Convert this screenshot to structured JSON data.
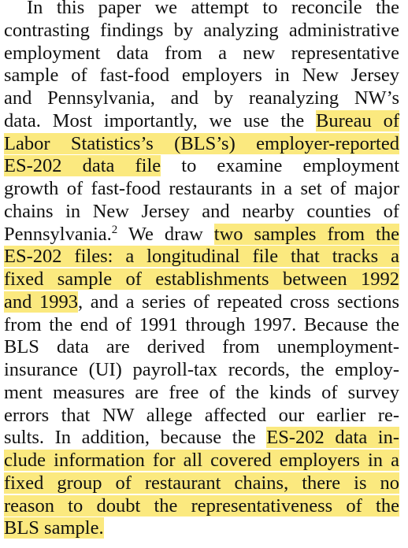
{
  "paragraph": {
    "lines": [
      [
        {
          "t": "In this paper we attempt to reconcile the"
        }
      ],
      [
        {
          "t": "contrasting findings by analyzing administrative"
        }
      ],
      [
        {
          "t": "employment data from a new representative"
        }
      ],
      [
        {
          "t": "sample of fast-food employers in New Jersey"
        }
      ],
      [
        {
          "t": "and Pennsylvania, and by reanalyzing NW’s"
        }
      ],
      [
        {
          "t": "data. Most importantly, we use the "
        },
        {
          "t": "Bureau of",
          "hl": true
        }
      ],
      [
        {
          "t": "Labor Statistics’s (BLS’s) employer-reported",
          "hl": true
        }
      ],
      [
        {
          "t": "ES-202 data file",
          "hl": true
        },
        {
          "t": " to examine employment"
        }
      ],
      [
        {
          "t": "growth of fast-food restaurants in a set of major"
        }
      ],
      [
        {
          "t": "chains in New Jersey and nearby counties of"
        }
      ],
      [
        {
          "t": "Pennsylvania."
        },
        {
          "t": "2",
          "sup": true
        },
        {
          "t": " We draw "
        },
        {
          "t": "two samples from the",
          "hl": true
        }
      ],
      [
        {
          "t": "ES-202 files: a longitudinal file that tracks a",
          "hl": true
        }
      ],
      [
        {
          "t": "fixed sample of establishments between 1992",
          "hl": true
        }
      ],
      [
        {
          "t": "and 1993",
          "hl": true
        },
        {
          "t": ", and a series of repeated cross sections"
        }
      ],
      [
        {
          "t": "from the end of 1991 through 1997. Because the"
        }
      ],
      [
        {
          "t": "BLS data are derived from unemployment-"
        }
      ],
      [
        {
          "t": "insurance (UI) payroll-tax records, the employ-"
        }
      ],
      [
        {
          "t": "ment measures are free of the kinds of survey"
        }
      ],
      [
        {
          "t": "errors that NW allege affected our earlier re-"
        }
      ],
      [
        {
          "t": "sults. In addition, because the "
        },
        {
          "t": "ES-202 data in-",
          "hl": true
        }
      ],
      [
        {
          "t": "clude information for all covered employers in a",
          "hl": true
        }
      ],
      [
        {
          "t": "fixed group of restaurant chains, there is no",
          "hl": true
        }
      ],
      [
        {
          "t": "reason to doubt the representativeness of the",
          "hl": true
        }
      ],
      [
        {
          "t": "BLS sample.",
          "hl": true
        }
      ]
    ]
  }
}
